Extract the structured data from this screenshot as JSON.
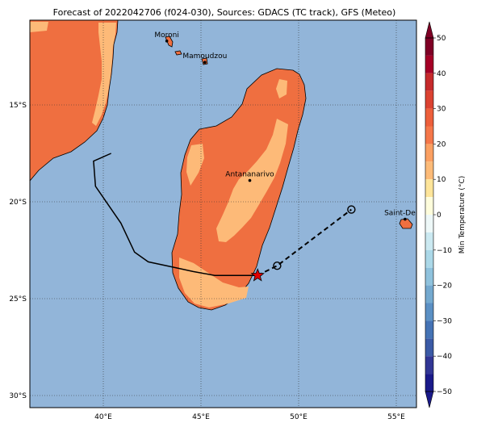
{
  "title": "Forecast of 2022042706 (f024-030), Sources: GDACS (TC track), GFS (Meteo)",
  "x_ticks": [
    {
      "lon": 40,
      "label": "40°E"
    },
    {
      "lon": 45,
      "label": "45°E"
    },
    {
      "lon": 50,
      "label": "50°E"
    },
    {
      "lon": 55,
      "label": "55°E"
    }
  ],
  "y_ticks": [
    {
      "lat": -15,
      "label": "15°S"
    },
    {
      "lat": -20,
      "label": "20°S"
    },
    {
      "lat": -25,
      "label": "25°S"
    },
    {
      "lat": -30,
      "label": "30°S"
    }
  ],
  "cities": [
    {
      "name": "Moroni",
      "lon": 43.25,
      "lat": -11.7
    },
    {
      "name": "Mamoudzou",
      "lon": 45.2,
      "lat": -12.8
    },
    {
      "name": "Antananarivo",
      "lon": 47.5,
      "lat": -18.9
    },
    {
      "name": "Saint-Denis",
      "lon": 55.45,
      "lat": -20.9
    }
  ],
  "colorbar": {
    "label": "Min Temperature (°C)",
    "ticks": [
      "50",
      "40",
      "30",
      "20",
      "10",
      "0",
      "−10",
      "−20",
      "−30",
      "−40",
      "−50"
    ],
    "levels": [
      {
        "from": 45,
        "to": 50,
        "color": "#7f0025"
      },
      {
        "from": 40,
        "to": 45,
        "color": "#a50026"
      },
      {
        "from": 35,
        "to": 40,
        "color": "#c62a2b"
      },
      {
        "from": 30,
        "to": 35,
        "color": "#db4231"
      },
      {
        "from": 25,
        "to": 30,
        "color": "#ed5f3b"
      },
      {
        "from": 20,
        "to": 25,
        "color": "#f5774a"
      },
      {
        "from": 15,
        "to": 20,
        "color": "#fba062"
      },
      {
        "from": 10,
        "to": 15,
        "color": "#fdbb78"
      },
      {
        "from": 5,
        "to": 10,
        "color": "#fee59a"
      },
      {
        "from": 0,
        "to": 5,
        "color": "#fefddc"
      },
      {
        "from": -5,
        "to": 0,
        "color": "#eef8f8"
      },
      {
        "from": -10,
        "to": -5,
        "color": "#cbe9f1"
      },
      {
        "from": -15,
        "to": -10,
        "color": "#abd8e8"
      },
      {
        "from": -20,
        "to": -15,
        "color": "#8fc2dd"
      },
      {
        "from": -25,
        "to": -20,
        "color": "#74a9cf"
      },
      {
        "from": -30,
        "to": -25,
        "color": "#5b90c4"
      },
      {
        "from": -35,
        "to": -30,
        "color": "#4573b5"
      },
      {
        "from": -40,
        "to": -35,
        "color": "#3b5aa6"
      },
      {
        "from": -45,
        "to": -40,
        "color": "#313695"
      },
      {
        "from": -50,
        "to": -45,
        "color": "#1a1a8a"
      }
    ]
  },
  "colors": {
    "ocean": "#92b5d9",
    "land_warm": "#ef6f40",
    "land_mild": "#fdba78",
    "track": "#000000",
    "storm_marker": "#e00000"
  },
  "track": {
    "past_path": [
      [
        40.4,
        -17.5
      ],
      [
        39.5,
        -17.9
      ],
      [
        39.6,
        -19.2
      ],
      [
        40.9,
        -21.1
      ],
      [
        41.6,
        -22.6
      ],
      [
        42.3,
        -23.1
      ],
      [
        43.7,
        -23.4
      ],
      [
        44.6,
        -23.6
      ],
      [
        45.7,
        -23.8
      ],
      [
        47.4,
        -23.8
      ],
      [
        47.9,
        -23.8
      ]
    ],
    "current_position": [
      47.9,
      -23.8
    ],
    "forecast_path": [
      [
        47.9,
        -23.8
      ],
      [
        48.9,
        -23.3
      ],
      [
        52.7,
        -20.4
      ]
    ],
    "forecast_points": [
      [
        48.9,
        -23.3
      ],
      [
        52.7,
        -20.4
      ]
    ]
  }
}
